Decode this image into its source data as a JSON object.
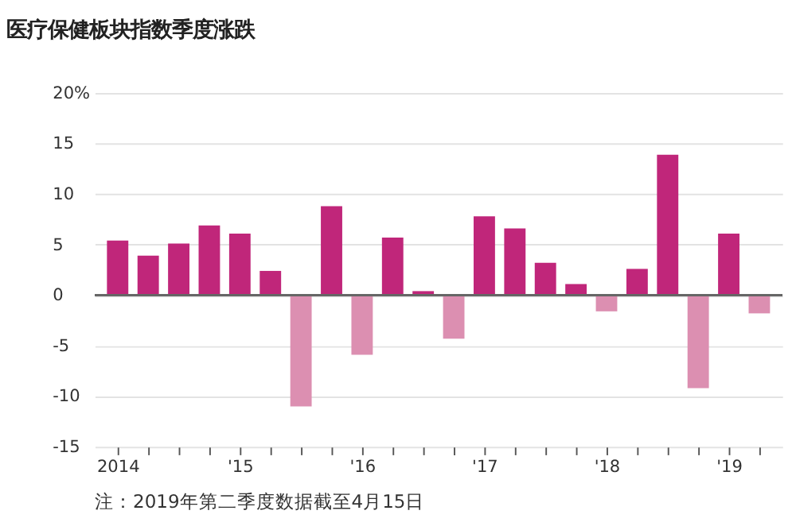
{
  "chart_data": {
    "type": "bar",
    "title": "医疗保健板块指数季度涨跌",
    "categories": [
      "2014",
      null,
      null,
      null,
      "'15",
      null,
      null,
      null,
      "'16",
      null,
      null,
      null,
      "'17",
      null,
      null,
      null,
      "'18",
      null,
      null,
      null,
      "'19",
      null
    ],
    "values": [
      5.4,
      3.9,
      5.1,
      6.9,
      6.1,
      2.4,
      -11.0,
      8.8,
      -5.9,
      5.7,
      0.4,
      -4.3,
      7.8,
      6.6,
      3.2,
      1.1,
      -1.6,
      2.6,
      13.9,
      -9.2,
      6.1,
      -1.8
    ],
    "colors": [
      "#c0267a",
      "#c0267a",
      "#c0267a",
      "#c0267a",
      "#c0267a",
      "#c0267a",
      "#dc8fb1",
      "#c0267a",
      "#dc8fb1",
      "#c0267a",
      "#c0267a",
      "#dc8fb1",
      "#c0267a",
      "#c0267a",
      "#c0267a",
      "#c0267a",
      "#dc8fb1",
      "#c0267a",
      "#c0267a",
      "#dc8fb1",
      "#c0267a",
      "#dc8fb1"
    ],
    "ylim": [
      -15,
      20
    ],
    "yticks": [
      {
        "value": 20,
        "label": "20%"
      },
      15,
      10,
      5,
      0,
      -5,
      -10,
      -15
    ],
    "grid": "y",
    "annotations": [
      "注：2019年第二季度数据截至4月15日"
    ]
  }
}
